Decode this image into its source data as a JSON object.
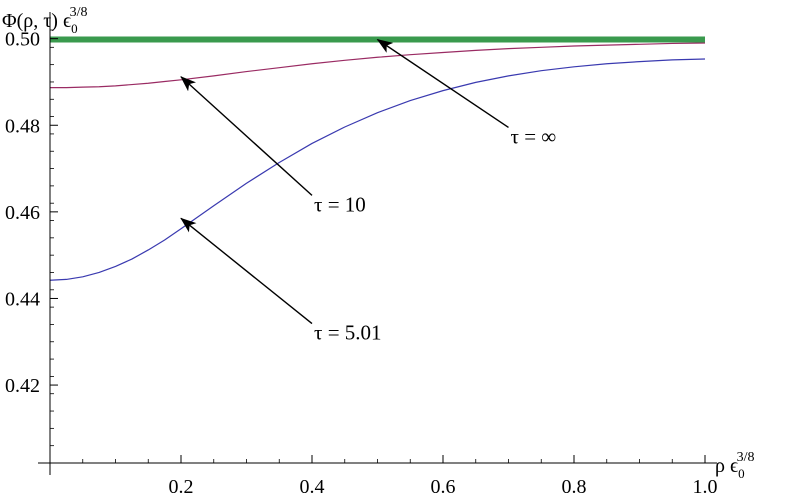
{
  "chart_data": {
    "type": "line",
    "xlabel_parts": [
      "ρ ϵ",
      "0",
      "3/8"
    ],
    "ylabel_parts": [
      "Φ(ρ, τ) ϵ",
      "0",
      "3/8"
    ],
    "xlim": [
      0.0,
      1.0
    ],
    "ylim": [
      0.402,
      0.502
    ],
    "x_ticks": [
      {
        "value": 0.2,
        "label": "0.2"
      },
      {
        "value": 0.4,
        "label": "0.4"
      },
      {
        "value": 0.6,
        "label": "0.6"
      },
      {
        "value": 0.8,
        "label": "0.8"
      },
      {
        "value": 1.0,
        "label": "1.0"
      }
    ],
    "y_ticks": [
      {
        "value": 0.42,
        "label": "0.42"
      },
      {
        "value": 0.44,
        "label": "0.44"
      },
      {
        "value": 0.46,
        "label": "0.46"
      },
      {
        "value": 0.48,
        "label": "0.48"
      },
      {
        "value": 0.5,
        "label": "0.50"
      }
    ],
    "x_minor_step": 0.05,
    "y_minor_step": 0.004,
    "grid": false,
    "series": [
      {
        "color": "#3a3ab0",
        "x": [
          0.0,
          0.025,
          0.05,
          0.075,
          0.1,
          0.125,
          0.15,
          0.175,
          0.2,
          0.25,
          0.3,
          0.35,
          0.4,
          0.45,
          0.5,
          0.55,
          0.6,
          0.65,
          0.7,
          0.75,
          0.8,
          0.85,
          0.9,
          0.95,
          1.0
        ],
        "y": [
          0.4442,
          0.4444,
          0.445,
          0.446,
          0.4474,
          0.4491,
          0.4512,
          0.4535,
          0.4561,
          0.4614,
          0.4666,
          0.4714,
          0.4758,
          0.4796,
          0.4829,
          0.4857,
          0.488,
          0.4899,
          0.4914,
          0.4926,
          0.4935,
          0.4942,
          0.4947,
          0.4951,
          0.4953
        ]
      },
      {
        "color": "#9a2b63",
        "x": [
          0.0,
          0.025,
          0.05,
          0.075,
          0.1,
          0.125,
          0.15,
          0.175,
          0.2,
          0.25,
          0.3,
          0.35,
          0.4,
          0.45,
          0.5,
          0.55,
          0.6,
          0.65,
          0.7,
          0.75,
          0.8,
          0.85,
          0.9,
          0.95,
          1.0
        ],
        "y": [
          0.4887,
          0.4887,
          0.4888,
          0.4889,
          0.4891,
          0.4894,
          0.4897,
          0.4901,
          0.4905,
          0.4914,
          0.4924,
          0.4933,
          0.4942,
          0.495,
          0.4957,
          0.4963,
          0.4968,
          0.4973,
          0.4977,
          0.498,
          0.4983,
          0.4985,
          0.4987,
          0.4989,
          0.499
        ]
      },
      {
        "color": "#3a9a4e",
        "x": [
          0.0,
          1.0
        ],
        "y": [
          0.4998,
          0.4998
        ]
      }
    ],
    "annotations": [
      {
        "label": "τ = ∞",
        "point": [
          0.5,
          0.4998
        ],
        "text_at": [
          0.7,
          0.4795
        ]
      },
      {
        "label": "τ = 10",
        "point": [
          0.2,
          0.4912
        ],
        "text_at": [
          0.4,
          0.4638
        ]
      },
      {
        "label": "τ = 5.01",
        "point": [
          0.2,
          0.4585
        ],
        "text_at": [
          0.4,
          0.4342
        ]
      }
    ]
  }
}
